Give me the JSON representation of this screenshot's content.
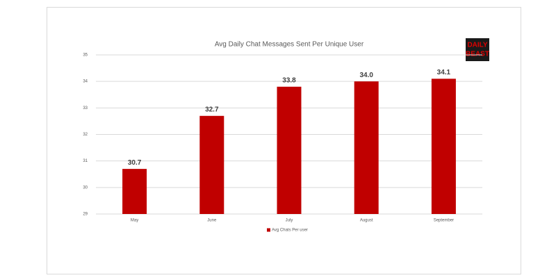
{
  "chart_data": {
    "type": "bar",
    "title": "Avg Daily Chat Messages Sent Per Unique User",
    "categories": [
      "May",
      "June",
      "July",
      "August",
      "September"
    ],
    "series": [
      {
        "name": "Avg Chats Per user",
        "color": "#c00000",
        "values": [
          30.7,
          32.7,
          33.8,
          34.0,
          34.1
        ],
        "value_labels": [
          "30.7",
          "32.7",
          "33.8",
          "34.0",
          "34.1"
        ]
      }
    ],
    "ylim": [
      29,
      35
    ],
    "yticks": [
      29,
      30,
      31,
      32,
      33,
      34,
      35
    ],
    "grid": true
  },
  "logo": {
    "lines": [
      "DAILY",
      "BEAST"
    ]
  }
}
